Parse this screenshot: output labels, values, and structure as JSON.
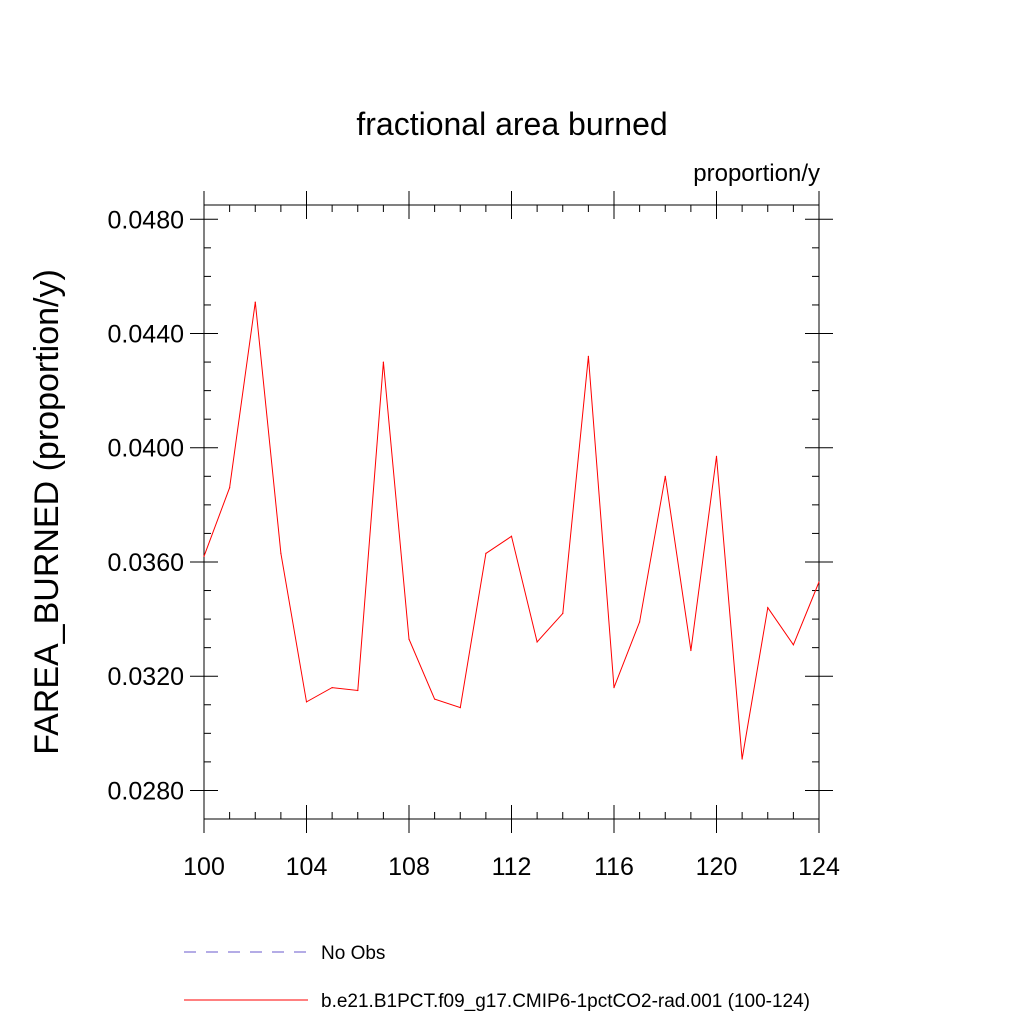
{
  "chart_data": {
    "type": "line",
    "title": "fractional area burned",
    "units_label": "proportion/y",
    "ylabel": "FAREA_BURNED  (proportion/y)",
    "xlabel": "",
    "xlim": [
      100,
      124
    ],
    "ylim": [
      0.027,
      0.0485
    ],
    "x_ticks": [
      100,
      104,
      108,
      112,
      116,
      120,
      124
    ],
    "y_ticks": [
      0.028,
      0.032,
      0.036,
      0.04,
      0.044,
      0.048
    ],
    "y_tick_labels": [
      "0.0280",
      "0.0320",
      "0.0360",
      "0.0400",
      "0.0440",
      "0.0480"
    ],
    "grid": false,
    "legend_placement": "bottom",
    "series": [
      {
        "name": "No Obs",
        "color": "#6a5acd",
        "dash": "dashed",
        "x": [],
        "y": []
      },
      {
        "name": "b.e21.B1PCT.f09_g17.CMIP6-1pctCO2-rad.001 (100-124)",
        "color": "#ff0000",
        "dash": "solid",
        "x": [
          100,
          101,
          102,
          103,
          104,
          105,
          106,
          107,
          108,
          109,
          110,
          111,
          112,
          113,
          114,
          115,
          116,
          117,
          118,
          119,
          120,
          121,
          122,
          123,
          124
        ],
        "y": [
          0.0362,
          0.0386,
          0.0451,
          0.0363,
          0.0311,
          0.0316,
          0.0315,
          0.043,
          0.0333,
          0.0312,
          0.0309,
          0.0363,
          0.0369,
          0.0332,
          0.0342,
          0.0432,
          0.0316,
          0.0339,
          0.039,
          0.0329,
          0.0397,
          0.0291,
          0.0344,
          0.0331,
          0.0353
        ]
      }
    ]
  }
}
